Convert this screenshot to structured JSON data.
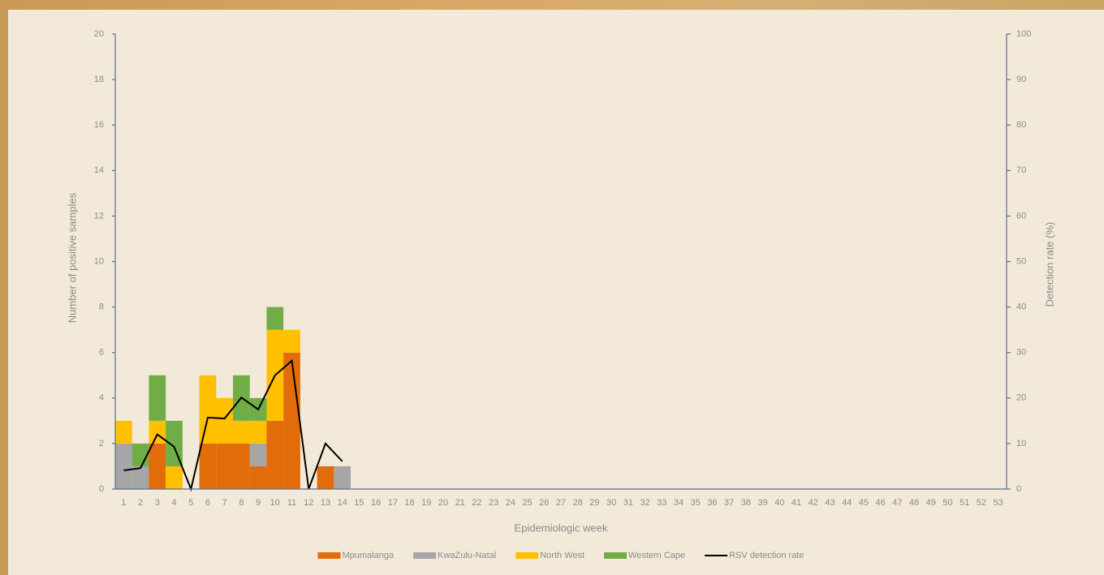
{
  "chart_data": {
    "type": "bar",
    "stacked": true,
    "x_label": "Epidemiologic week",
    "y_label": "Number of positive samples",
    "y2_label": "Detection rate (%)",
    "categories": [
      "1",
      "2",
      "3",
      "4",
      "5",
      "6",
      "7",
      "8",
      "9",
      "10",
      "11",
      "12",
      "13",
      "14",
      "15",
      "16",
      "17",
      "18",
      "19",
      "20",
      "21",
      "22",
      "23",
      "24",
      "25",
      "26",
      "27",
      "28",
      "29",
      "30",
      "31",
      "32",
      "33",
      "34",
      "35",
      "36",
      "37",
      "38",
      "39",
      "40",
      "41",
      "42",
      "43",
      "44",
      "45",
      "46",
      "47",
      "48",
      "49",
      "50",
      "51",
      "52",
      "53"
    ],
    "ylim": [
      0,
      20
    ],
    "yticks": [
      0,
      2,
      4,
      6,
      8,
      10,
      12,
      14,
      16,
      18,
      20
    ],
    "y2lim": [
      0,
      100
    ],
    "y2ticks": [
      0,
      10,
      20,
      30,
      40,
      50,
      60,
      70,
      80,
      90,
      100
    ],
    "series": [
      {
        "name": "Mpumalanga",
        "color": "#e36c0a",
        "values": [
          0,
          0,
          2,
          0,
          0,
          2,
          2,
          2,
          1,
          3,
          6,
          0,
          1,
          0,
          0,
          0,
          0,
          0,
          0,
          0,
          0,
          0,
          0,
          0,
          0,
          0,
          0,
          0,
          0,
          0,
          0,
          0,
          0,
          0,
          0,
          0,
          0,
          0,
          0,
          0,
          0,
          0,
          0,
          0,
          0,
          0,
          0,
          0,
          0,
          0,
          0,
          0,
          0
        ]
      },
      {
        "name": "KwaZulu-Natal",
        "color": "#a6a6a6",
        "values": [
          2,
          1,
          0,
          0,
          0,
          0,
          0,
          0,
          1,
          0,
          0,
          0,
          0,
          1,
          0,
          0,
          0,
          0,
          0,
          0,
          0,
          0,
          0,
          0,
          0,
          0,
          0,
          0,
          0,
          0,
          0,
          0,
          0,
          0,
          0,
          0,
          0,
          0,
          0,
          0,
          0,
          0,
          0,
          0,
          0,
          0,
          0,
          0,
          0,
          0,
          0,
          0,
          0
        ]
      },
      {
        "name": "North West",
        "color": "#ffc000",
        "values": [
          1,
          0,
          1,
          1,
          0,
          3,
          2,
          1,
          1,
          4,
          1,
          0,
          0,
          0,
          0,
          0,
          0,
          0,
          0,
          0,
          0,
          0,
          0,
          0,
          0,
          0,
          0,
          0,
          0,
          0,
          0,
          0,
          0,
          0,
          0,
          0,
          0,
          0,
          0,
          0,
          0,
          0,
          0,
          0,
          0,
          0,
          0,
          0,
          0,
          0,
          0,
          0,
          0
        ]
      },
      {
        "name": "Western Cape",
        "color": "#70ad47",
        "values": [
          0,
          1,
          2,
          2,
          0,
          0,
          0,
          2,
          1,
          1,
          0,
          0,
          0,
          0,
          0,
          0,
          0,
          0,
          0,
          0,
          0,
          0,
          0,
          0,
          0,
          0,
          0,
          0,
          0,
          0,
          0,
          0,
          0,
          0,
          0,
          0,
          0,
          0,
          0,
          0,
          0,
          0,
          0,
          0,
          0,
          0,
          0,
          0,
          0,
          0,
          0,
          0,
          0
        ]
      },
      {
        "name": "RSV detection rate",
        "type": "line",
        "axis": "y2",
        "color": "#000000",
        "values": [
          4.1,
          4.6,
          12,
          9.3,
          0,
          15.7,
          15.5,
          20.1,
          17.5,
          25,
          28.2,
          0,
          10,
          6.1,
          null,
          null,
          null,
          null,
          null,
          null,
          null,
          null,
          null,
          null,
          null,
          null,
          null,
          null,
          null,
          null,
          null,
          null,
          null,
          null,
          null,
          null,
          null,
          null,
          null,
          null,
          null,
          null,
          null,
          null,
          null,
          null,
          null,
          null,
          null,
          null,
          null,
          null,
          null
        ]
      }
    ]
  }
}
